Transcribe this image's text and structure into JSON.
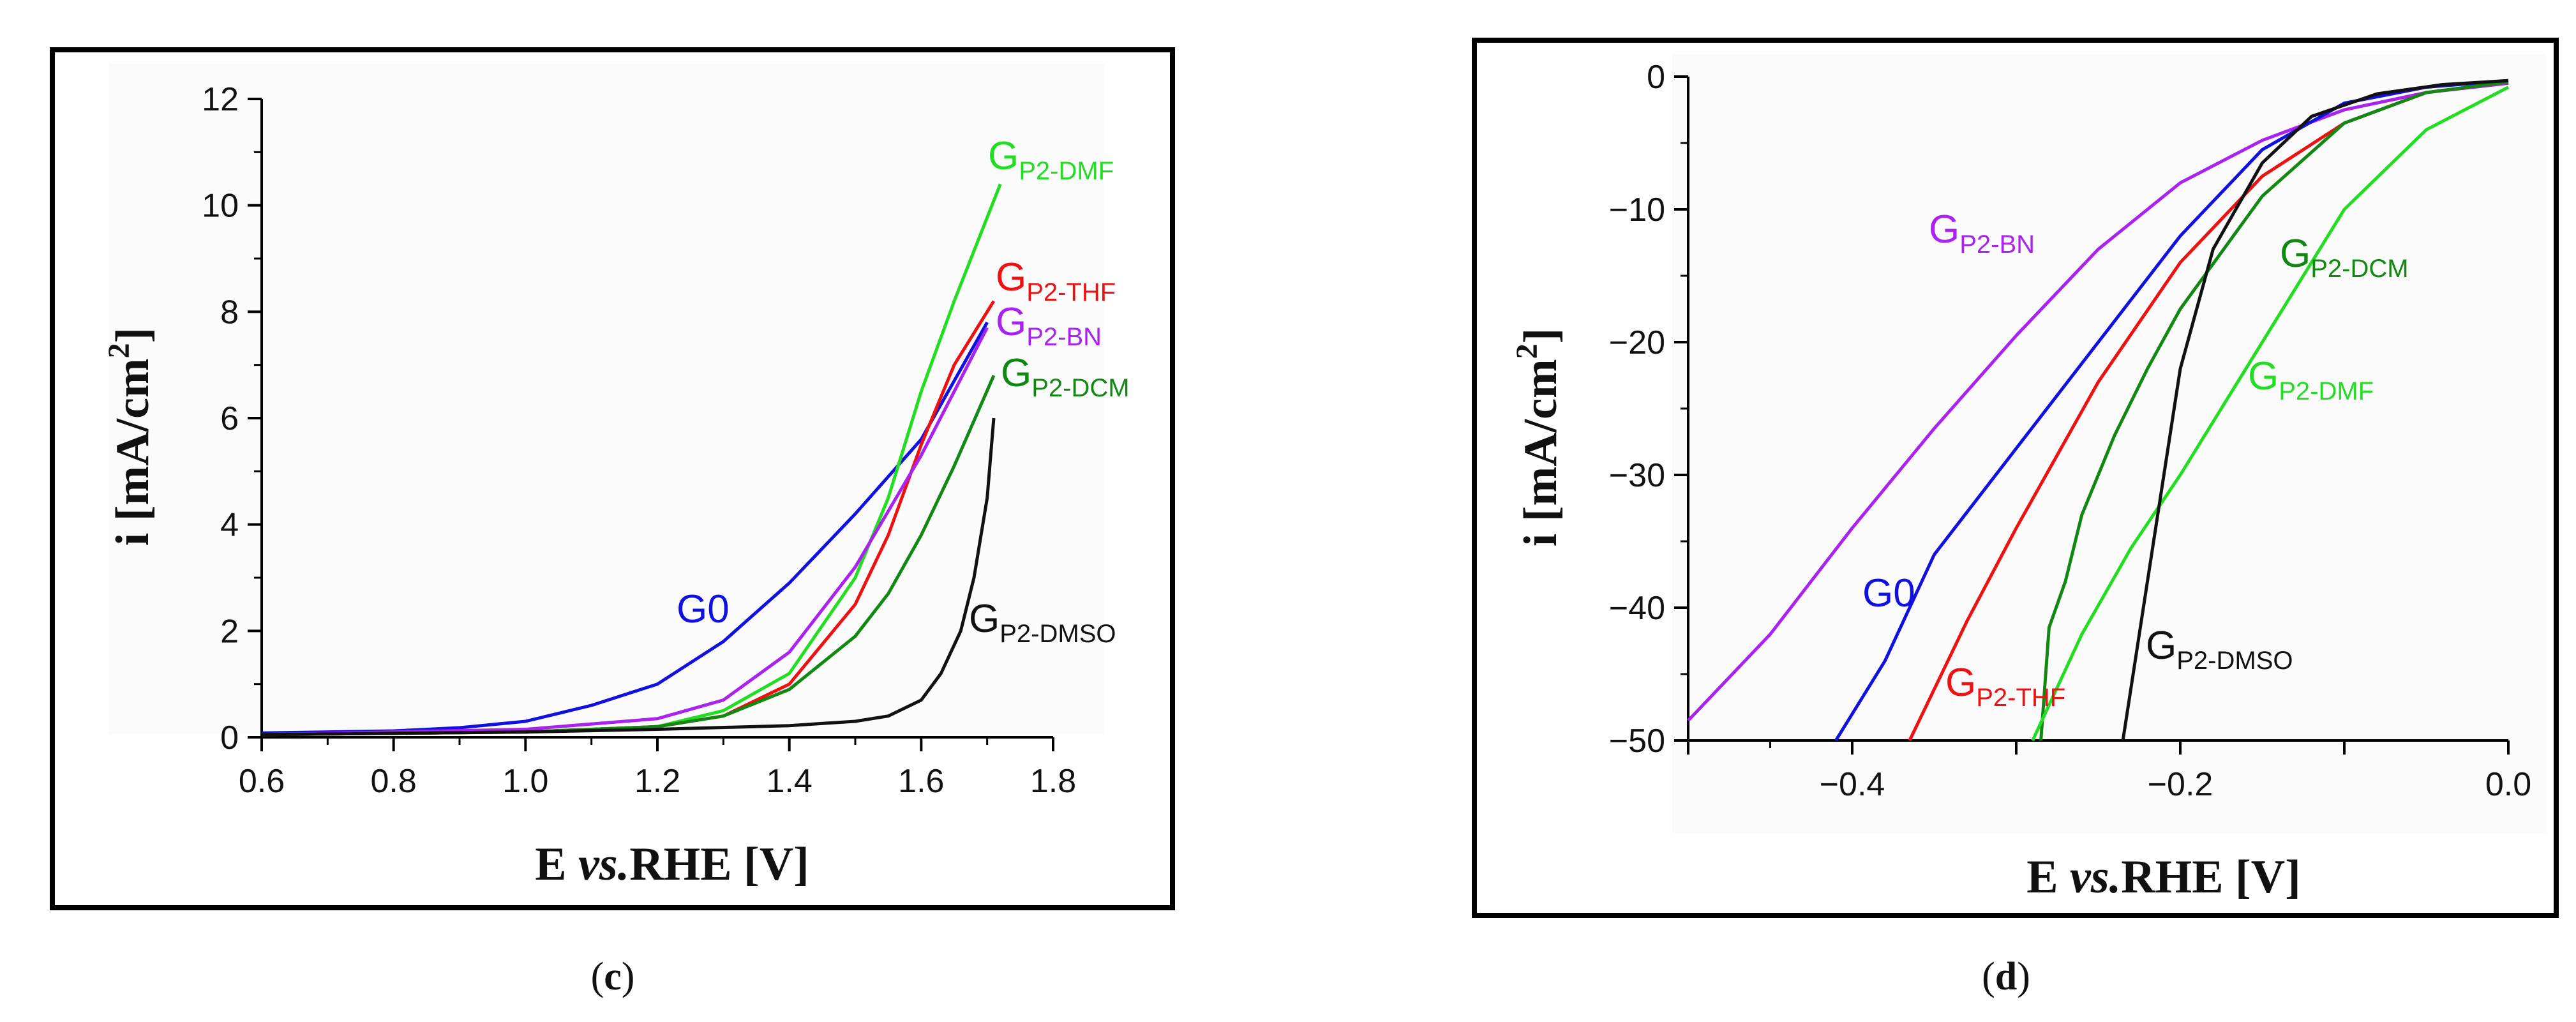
{
  "chart_data": [
    {
      "type": "line",
      "panel": "(c)",
      "panel_letter": "c",
      "xlabel": "E vs.RHE [V]",
      "xlabel_parts": {
        "main": "E ",
        "italic": "vs.",
        "rest": "RHE [V]"
      },
      "ylabel": "i [mA/cm2]",
      "ylabel_parts": {
        "main": "i [mA/cm",
        "sup": "2",
        "end": "]"
      },
      "xlim": [
        0.6,
        1.8
      ],
      "ylim": [
        0,
        12
      ],
      "xticks": [
        0.6,
        0.8,
        1.0,
        1.2,
        1.4,
        1.6,
        1.8
      ],
      "xtick_labels": [
        "0.6",
        "0.8",
        "1.0",
        "1.2",
        "1.4",
        "1.6",
        "1.8"
      ],
      "yticks": [
        0,
        2,
        4,
        6,
        8,
        10,
        12
      ],
      "ytick_labels": [
        "0",
        "2",
        "4",
        "6",
        "8",
        "10",
        "12"
      ],
      "series": [
        {
          "name": "G0",
          "label_main": "G0",
          "label_sub": "",
          "color": "#1010e0",
          "x": [
            0.6,
            0.8,
            0.9,
            1.0,
            1.1,
            1.2,
            1.3,
            1.4,
            1.5,
            1.6,
            1.7
          ],
          "y": [
            0.08,
            0.12,
            0.18,
            0.3,
            0.6,
            1.0,
            1.8,
            2.9,
            4.2,
            5.6,
            7.8
          ]
        },
        {
          "name": "GP2-DMF",
          "label_main": "G",
          "label_sub": "P2-DMF",
          "color": "#22dd22",
          "x": [
            0.6,
            1.0,
            1.2,
            1.3,
            1.4,
            1.5,
            1.55,
            1.6,
            1.65,
            1.72
          ],
          "y": [
            0.05,
            0.1,
            0.2,
            0.5,
            1.2,
            3.0,
            4.5,
            6.5,
            8.2,
            10.4
          ]
        },
        {
          "name": "GP2-THF",
          "label_main": "G",
          "label_sub": "P2-THF",
          "color": "#ee1111",
          "x": [
            0.6,
            1.0,
            1.2,
            1.3,
            1.4,
            1.5,
            1.55,
            1.6,
            1.65,
            1.71
          ],
          "y": [
            0.05,
            0.1,
            0.2,
            0.4,
            1.0,
            2.5,
            3.8,
            5.5,
            7.0,
            8.2
          ]
        },
        {
          "name": "GP2-BN",
          "label_main": "G",
          "label_sub": "P2-BN",
          "color": "#aa22ee",
          "x": [
            0.6,
            1.0,
            1.2,
            1.3,
            1.4,
            1.5,
            1.6,
            1.65,
            1.7
          ],
          "y": [
            0.05,
            0.15,
            0.35,
            0.7,
            1.6,
            3.2,
            5.3,
            6.5,
            7.7
          ]
        },
        {
          "name": "GP2-DCM",
          "label_main": "G",
          "label_sub": "P2-DCM",
          "color": "#118811",
          "x": [
            0.6,
            1.0,
            1.2,
            1.3,
            1.4,
            1.5,
            1.55,
            1.6,
            1.65,
            1.71
          ],
          "y": [
            0.05,
            0.1,
            0.2,
            0.4,
            0.9,
            1.9,
            2.7,
            3.8,
            5.1,
            6.8
          ]
        },
        {
          "name": "GP2-DMSO",
          "label_main": "G",
          "label_sub": "P2-DMSO",
          "color": "#111111",
          "x": [
            0.6,
            1.0,
            1.2,
            1.4,
            1.5,
            1.55,
            1.6,
            1.63,
            1.66,
            1.68,
            1.7,
            1.71
          ],
          "y": [
            0.05,
            0.1,
            0.15,
            0.22,
            0.3,
            0.4,
            0.7,
            1.2,
            2.0,
            3.0,
            4.5,
            6.0
          ]
        }
      ]
    },
    {
      "type": "line",
      "panel": "(d)",
      "panel_letter": "d",
      "xlabel": "E vs.RHE [V]",
      "xlabel_parts": {
        "main": "E ",
        "italic": "vs.",
        "rest": "RHE [V]"
      },
      "ylabel": "i [mA/cm2]",
      "ylabel_parts": {
        "main": "i [mA/cm",
        "sup": "2",
        "end": "]"
      },
      "xlim": [
        -0.5,
        0.0
      ],
      "ylim": [
        -50,
        0
      ],
      "xticks": [
        -0.4,
        -0.2,
        0.0
      ],
      "xtick_labels": [
        "−0.4",
        "−0.2",
        "0.0"
      ],
      "yticks": [
        0,
        -10,
        -20,
        -30,
        -40,
        -50
      ],
      "ytick_labels": [
        "0",
        "−10",
        "−20",
        "−30",
        "−40",
        "−50"
      ],
      "series": [
        {
          "name": "GP2-BN",
          "label_main": "G",
          "label_sub": "P2-BN",
          "color": "#aa22ee",
          "x": [
            -0.5,
            -0.45,
            -0.4,
            -0.35,
            -0.3,
            -0.25,
            -0.2,
            -0.15,
            -0.1,
            -0.05,
            0.0
          ],
          "y": [
            -48.5,
            -42.0,
            -34.0,
            -26.5,
            -19.5,
            -13.0,
            -8.0,
            -4.8,
            -2.5,
            -1.2,
            -0.5
          ]
        },
        {
          "name": "G0",
          "label_main": "G0",
          "label_sub": "",
          "color": "#1010e0",
          "x": [
            -0.41,
            -0.38,
            -0.35,
            -0.3,
            -0.25,
            -0.2,
            -0.15,
            -0.1,
            -0.05,
            0.0
          ],
          "y": [
            -50.0,
            -44.0,
            -36.0,
            -28.0,
            -20.0,
            -12.0,
            -5.5,
            -2.0,
            -0.8,
            -0.3
          ]
        },
        {
          "name": "GP2-THF",
          "label_main": "G",
          "label_sub": "P2-THF",
          "color": "#ee1111",
          "x": [
            -0.365,
            -0.33,
            -0.3,
            -0.25,
            -0.2,
            -0.15,
            -0.1,
            -0.05,
            0.0
          ],
          "y": [
            -50.0,
            -41.0,
            -34.0,
            -23.0,
            -14.0,
            -7.5,
            -3.5,
            -1.2,
            -0.4
          ]
        },
        {
          "name": "GP2-DCM",
          "label_main": "G",
          "label_sub": "P2-DCM",
          "color": "#118811",
          "x": [
            -0.285,
            -0.28,
            -0.27,
            -0.26,
            -0.24,
            -0.22,
            -0.2,
            -0.15,
            -0.1,
            -0.05,
            0.0
          ],
          "y": [
            -50.0,
            -41.5,
            -38.0,
            -33.0,
            -27.0,
            -22.0,
            -17.5,
            -9.0,
            -3.5,
            -1.2,
            -0.4
          ]
        },
        {
          "name": "GP2-DMF",
          "label_main": "G",
          "label_sub": "P2-DMF",
          "color": "#22dd22",
          "x": [
            -0.29,
            -0.26,
            -0.23,
            -0.2,
            -0.17,
            -0.15,
            -0.1,
            -0.05,
            0.0
          ],
          "y": [
            -50.0,
            -42.0,
            -35.5,
            -30.0,
            -24.0,
            -20.0,
            -10.0,
            -4.0,
            -0.8
          ]
        },
        {
          "name": "GP2-DMSO",
          "label_main": "G",
          "label_sub": "P2-DMSO",
          "color": "#111111",
          "x": [
            -0.235,
            -0.22,
            -0.21,
            -0.2,
            -0.18,
            -0.15,
            -0.12,
            -0.08,
            -0.04,
            0.0
          ],
          "y": [
            -50.0,
            -38.0,
            -30.0,
            -22.0,
            -13.0,
            -6.5,
            -3.0,
            -1.3,
            -0.6,
            -0.3
          ]
        }
      ]
    }
  ]
}
